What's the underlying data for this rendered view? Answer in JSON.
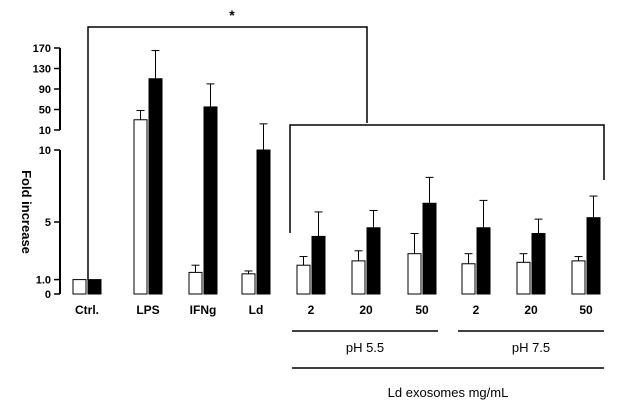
{
  "chart_data": {
    "type": "bar",
    "ylabel": "Fold increase",
    "y_axis_break": true,
    "lower_segment": {
      "ylim": [
        0,
        10
      ],
      "ticks": [
        "0",
        "1.0",
        "5",
        "10"
      ]
    },
    "upper_segment": {
      "ylim": [
        10,
        170
      ],
      "ticks": [
        "10",
        "50",
        "90",
        "130",
        "170"
      ]
    },
    "categories": [
      "Ctrl.",
      "LPS",
      "IFNg",
      "Ld",
      "2",
      "20",
      "50",
      "2",
      "20",
      "50"
    ],
    "series": [
      {
        "color": "#ffffff",
        "values": [
          1.0,
          30,
          1.5,
          1.4,
          2.0,
          2.3,
          2.8,
          2.1,
          2.2,
          2.3
        ],
        "errors": [
          0,
          18,
          0.5,
          0.2,
          0.6,
          0.7,
          1.4,
          0.7,
          0.6,
          0.3
        ]
      },
      {
        "color": "#000000",
        "values": [
          1.0,
          110,
          55,
          10,
          4.0,
          4.6,
          6.3,
          4.6,
          4.2,
          5.3
        ],
        "errors": [
          0,
          55,
          45,
          12,
          1.7,
          1.2,
          1.8,
          1.9,
          1.0,
          1.5
        ]
      }
    ],
    "groups": [
      {
        "label": "pH 5.5",
        "categories": [
          "2",
          "20",
          "50"
        ]
      },
      {
        "label": "pH 7.5",
        "categories": [
          "2",
          "20",
          "50"
        ]
      }
    ],
    "group_axis_label": "Ld exosomes mg/mL",
    "annotations": [
      {
        "text": "*",
        "between": [
          "Ctrl.",
          "Ld exosomes"
        ]
      }
    ],
    "grid": false,
    "legend": "none"
  }
}
